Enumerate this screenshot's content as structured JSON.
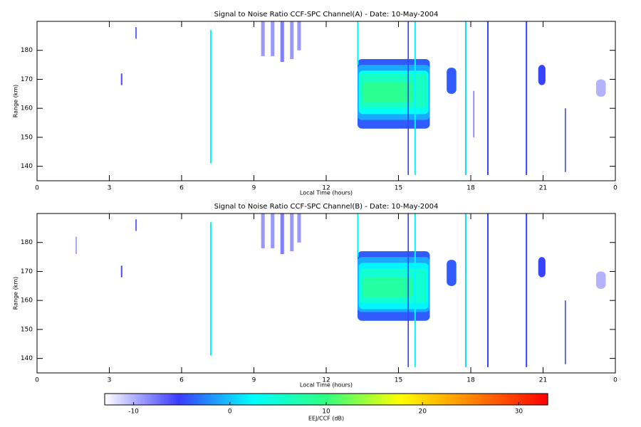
{
  "chart_data": [
    {
      "type": "heatmap",
      "title": "Signal to Noise Ratio CCF-SPC Channel(A) - Date: 10-May-2004",
      "xlabel": "Local Time (hours)",
      "ylabel": "Range (km)",
      "xlim": [
        0,
        24
      ],
      "ylim": [
        135,
        190
      ],
      "xticks": [
        0,
        3,
        6,
        9,
        12,
        15,
        18,
        21,
        {
          "value": 24,
          "label": "0"
        }
      ],
      "yticks": [
        140,
        150,
        160,
        170,
        180
      ],
      "cells": [
        [
          13.3,
          16.3,
          153,
          177,
          -4
        ],
        [
          13.3,
          16.3,
          156,
          175,
          -1
        ],
        [
          13.35,
          16.25,
          158,
          173,
          3
        ],
        [
          13.4,
          16.2,
          160,
          172,
          6
        ],
        [
          13.5,
          15.6,
          162,
          169,
          9
        ],
        [
          7.18,
          7.24,
          141,
          187,
          2
        ],
        [
          15.66,
          15.72,
          137,
          190,
          2
        ],
        [
          17.76,
          17.82,
          137,
          190,
          1
        ],
        [
          18.68,
          18.74,
          137,
          190,
          -5
        ],
        [
          20.28,
          20.34,
          137,
          190,
          -5
        ],
        [
          15.38,
          15.43,
          137,
          190,
          -5
        ],
        [
          13.28,
          13.34,
          175,
          190,
          3
        ],
        [
          17.0,
          17.4,
          165,
          174,
          -4
        ],
        [
          20.8,
          21.1,
          168,
          175,
          -5
        ],
        [
          9.3,
          9.45,
          178,
          190,
          -9
        ],
        [
          9.7,
          9.85,
          178,
          190,
          -9
        ],
        [
          10.1,
          10.25,
          176,
          190,
          -8
        ],
        [
          10.5,
          10.65,
          177,
          190,
          -9
        ],
        [
          10.8,
          10.95,
          180,
          190,
          -9
        ],
        [
          23.2,
          23.6,
          164,
          170,
          -10
        ],
        [
          3.48,
          3.54,
          168,
          172,
          -6
        ],
        [
          4.08,
          4.14,
          184,
          188,
          -7
        ],
        [
          21.9,
          21.95,
          138,
          160,
          -6
        ],
        [
          18.1,
          18.15,
          150,
          166,
          -8
        ]
      ]
    },
    {
      "type": "heatmap",
      "title": "Signal to Noise Ratio CCF-SPC Channel(B) - Date: 10-May-2004",
      "xlabel": "Local Time (hours)",
      "ylabel": "Range (km)",
      "xlim": [
        0,
        24
      ],
      "ylim": [
        135,
        190
      ],
      "xticks": [
        0,
        3,
        6,
        9,
        12,
        15,
        18,
        21,
        {
          "value": 24,
          "label": "0"
        }
      ],
      "yticks": [
        140,
        150,
        160,
        170,
        180
      ],
      "cells": [
        [
          13.3,
          16.3,
          153,
          177,
          -4
        ],
        [
          13.3,
          16.3,
          156,
          175,
          -1
        ],
        [
          13.35,
          16.25,
          157,
          173,
          2
        ],
        [
          13.4,
          16.2,
          159,
          171,
          5
        ],
        [
          13.5,
          15.6,
          161,
          168,
          8
        ],
        [
          7.18,
          7.24,
          141,
          187,
          2
        ],
        [
          15.66,
          15.72,
          137,
          190,
          2
        ],
        [
          17.76,
          17.82,
          137,
          190,
          1
        ],
        [
          18.68,
          18.74,
          137,
          190,
          -5
        ],
        [
          20.28,
          20.34,
          137,
          190,
          -5
        ],
        [
          15.38,
          15.43,
          137,
          190,
          -5
        ],
        [
          13.28,
          13.34,
          175,
          190,
          3
        ],
        [
          17.0,
          17.4,
          165,
          174,
          -4
        ],
        [
          20.8,
          21.1,
          168,
          175,
          -5
        ],
        [
          9.3,
          9.45,
          178,
          190,
          -9
        ],
        [
          9.7,
          9.85,
          178,
          190,
          -9
        ],
        [
          10.1,
          10.25,
          176,
          190,
          -8
        ],
        [
          10.5,
          10.65,
          177,
          190,
          -9
        ],
        [
          10.8,
          10.95,
          180,
          190,
          -9
        ],
        [
          23.2,
          23.6,
          164,
          170,
          -10
        ],
        [
          3.48,
          3.54,
          168,
          172,
          -6
        ],
        [
          4.08,
          4.14,
          184,
          188,
          -7
        ],
        [
          1.6,
          1.65,
          176,
          182,
          -9
        ],
        [
          21.9,
          21.95,
          138,
          160,
          -6
        ]
      ]
    },
    {
      "type": "colorbar",
      "xlabel": "EEJ/CCF (dB)",
      "xlim": [
        -13,
        33
      ],
      "xticks": [
        -10,
        0,
        10,
        20,
        30
      ],
      "colormap": [
        "#ffffff",
        "#3a3aff",
        "#00ffff",
        "#30ff80",
        "#ffff00",
        "#ff8000",
        "#ff0000"
      ]
    }
  ]
}
